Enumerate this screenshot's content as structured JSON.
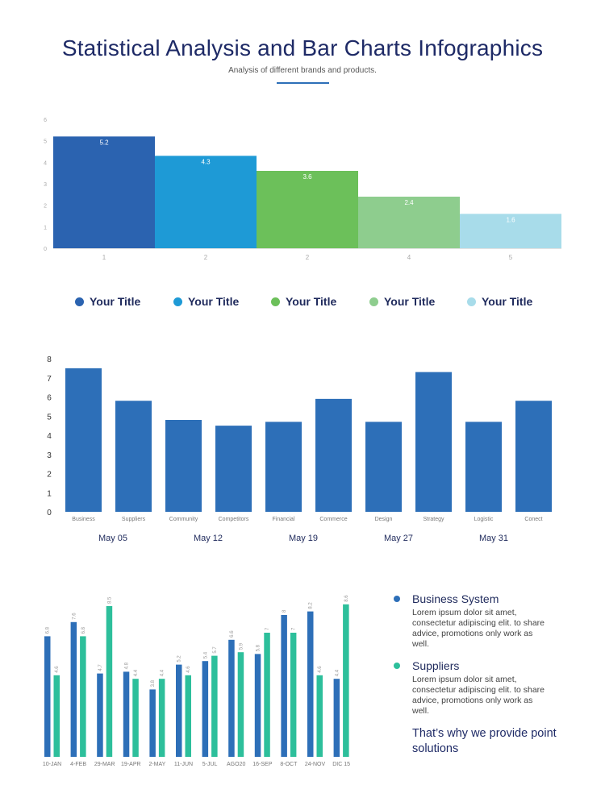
{
  "header": {
    "title": "Statistical Analysis and Bar Charts Infographics",
    "subtitle": "Analysis of different brands and products."
  },
  "legend": {
    "items": [
      {
        "label": "Your Title",
        "color": "#2b63b0"
      },
      {
        "label": "Your Title",
        "color": "#1e9ad6"
      },
      {
        "label": "Your Title",
        "color": "#6cc05a"
      },
      {
        "label": "Your Title",
        "color": "#8ecd8e"
      },
      {
        "label": "Your Title",
        "color": "#a8dcea"
      }
    ]
  },
  "chart_data": [
    {
      "type": "bar",
      "categories": [
        "1",
        "2",
        "2",
        "4",
        "5"
      ],
      "values": [
        5.2,
        4.3,
        3.6,
        2.4,
        1.6
      ],
      "value_labels": [
        "5.2",
        "4.3",
        "3.6",
        "2.4",
        "1.6"
      ],
      "colors": [
        "#2b63b0",
        "#1e9ad6",
        "#6cc05a",
        "#8ecd8e",
        "#a8dcea"
      ],
      "yticks": [
        "0",
        "1",
        "2",
        "3",
        "4",
        "5",
        "6"
      ],
      "ylim": [
        0,
        6
      ],
      "grid": false
    },
    {
      "type": "bar",
      "categories": [
        "Business",
        "Suppliers",
        "Community",
        "Competitors",
        "Financial",
        "Commerce",
        "Design",
        "Strategy",
        "Logistic",
        "Conect"
      ],
      "values": [
        7.5,
        5.8,
        4.8,
        4.5,
        4.7,
        5.9,
        4.7,
        7.3,
        4.7,
        5.8
      ],
      "color": "#2d6fb8",
      "yticks": [
        "0",
        "1",
        "2",
        "3",
        "4",
        "5",
        "6",
        "7",
        "8"
      ],
      "ylim": [
        0,
        8
      ],
      "grid": false
    },
    {
      "type": "bar",
      "categories": [
        "10-JAN",
        "4-FEB",
        "29-MAR",
        "19-APR",
        "2-MAY",
        "11-JUN",
        "5-JUL",
        "AGO20",
        "16-SEP",
        "8-OCT",
        "24-NOV",
        "DIC 15"
      ],
      "series": [
        {
          "name": "Business System",
          "color": "#2d6fb8",
          "values": [
            6.8,
            7.6,
            4.7,
            4.8,
            3.8,
            5.2,
            5.4,
            6.6,
            5.8,
            8.0,
            8.2,
            4.4
          ]
        },
        {
          "name": "Suppliers",
          "color": "#2dbf9b",
          "values": [
            4.6,
            6.8,
            8.5,
            4.4,
            4.4,
            4.6,
            5.7,
            5.9,
            7.0,
            7.0,
            4.6,
            8.6
          ]
        }
      ],
      "ylim": [
        0,
        9
      ],
      "grid": false
    }
  ],
  "dates": [
    "May 05",
    "May 12",
    "May 19",
    "May 27",
    "May 31"
  ],
  "info": {
    "items": [
      {
        "heading": "Business System",
        "body": "Lorem ipsum dolor sit amet, consectetur adipiscing elit. to share advice, promotions only work as well.",
        "color": "#2d6fb8"
      },
      {
        "heading": "Suppliers",
        "body": "Lorem ipsum dolor sit amet, consectetur adipiscing elit. to share advice, promotions only work as well.",
        "color": "#2dbf9b"
      }
    ],
    "closing": "That’s why we provide point solutions"
  }
}
